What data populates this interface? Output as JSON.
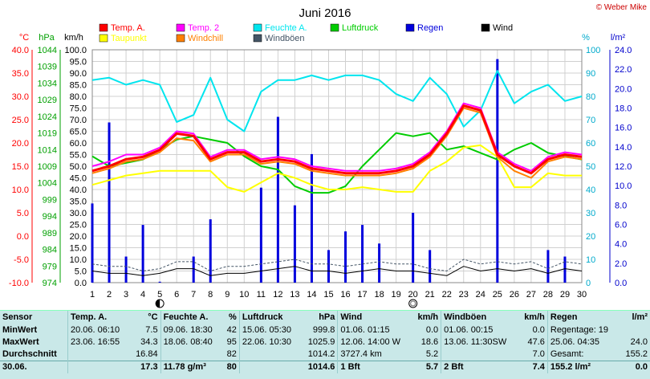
{
  "title": "Juni 2016",
  "copyright": "© Weber Mike",
  "colors": {
    "temp_a": "#ff0000",
    "temp2": "#ff00ff",
    "feuchte": "#00e5ee",
    "luftdruck": "#00cc00",
    "regen": "#0000dd",
    "wind": "#000000",
    "taupunkt": "#ffff00",
    "windchill": "#ff8000",
    "windboeen": "#445566",
    "axis_temp": "#ff0000",
    "axis_hpa": "#00a000",
    "axis_pct": "#00aacc",
    "axis_lm2": "#0000cc",
    "grid": "#d0d0d0"
  },
  "legend": [
    {
      "label": "Temp. A.",
      "color": "#ff0000"
    },
    {
      "label": "Temp. 2",
      "color": "#ff00ff"
    },
    {
      "label": "Feuchte A.",
      "color": "#00e5ee"
    },
    {
      "label": "Luftdruck",
      "color": "#00cc00"
    },
    {
      "label": "Regen",
      "color": "#0000dd"
    },
    {
      "label": "Wind",
      "color": "#000000"
    },
    {
      "label": "Taupunkt",
      "color": "#ffff00"
    },
    {
      "label": "Windchill",
      "color": "#ff8000"
    },
    {
      "label": "Windböen",
      "color": "#445566"
    }
  ],
  "axis_units": {
    "temp": "°C",
    "hpa": "hPa",
    "kmh": "km/h",
    "pct": "%",
    "lm2": "l/m²"
  },
  "chart_data": {
    "type": "line",
    "title": "Juni 2016",
    "x": [
      1,
      2,
      3,
      4,
      5,
      6,
      7,
      8,
      9,
      10,
      11,
      12,
      13,
      14,
      15,
      16,
      17,
      18,
      19,
      20,
      21,
      22,
      23,
      24,
      25,
      26,
      27,
      28,
      29,
      30
    ],
    "xlim": [
      1,
      30
    ],
    "axes": {
      "temp_c": {
        "ticks": [
          "40.0",
          "35.0",
          "30.0",
          "25.0",
          "20.0",
          "15.0",
          "10.0",
          "5.0",
          "0.0",
          "-5.0",
          "-10.0"
        ],
        "range": [
          -10,
          40
        ]
      },
      "hpa": {
        "ticks": [
          "1044",
          "1039",
          "1034",
          "1029",
          "1024",
          "1019",
          "1014",
          "1009",
          "1004",
          "999",
          "994",
          "989",
          "984",
          "979",
          "974"
        ],
        "range": [
          974,
          1044
        ]
      },
      "kmh": {
        "ticks": [
          "100.0",
          "95.0",
          "90.0",
          "85.0",
          "80.0",
          "75.0",
          "70.0",
          "65.0",
          "60.0",
          "55.0",
          "50.0",
          "45.0",
          "40.0",
          "35.0",
          "30.0",
          "25.0",
          "20.0",
          "15.0",
          "10.0",
          "5.0",
          "0.0"
        ],
        "range": [
          0,
          100
        ]
      },
      "pct": {
        "ticks": [
          "100",
          "90",
          "80",
          "70",
          "60",
          "50",
          "40",
          "30",
          "20",
          "10",
          "0"
        ],
        "range": [
          0,
          100
        ]
      },
      "lm2": {
        "ticks": [
          "24.0",
          "22.0",
          "20.0",
          "18.0",
          "16.0",
          "14.0",
          "12.0",
          "10.0",
          "8.0",
          "6.0",
          "4.0",
          "2.0",
          "0.0"
        ],
        "range": [
          0,
          25
        ]
      }
    },
    "markers": [
      {
        "x": 5,
        "symbol": "new-moon"
      },
      {
        "x": 20,
        "symbol": "full-moon"
      }
    ],
    "series": [
      {
        "name": "Temp. A.",
        "axis": "temp_c",
        "color": "#ff0000",
        "width": 3,
        "values": [
          14.0,
          15.0,
          16.5,
          17.0,
          18.5,
          22.0,
          21.5,
          16.5,
          18.0,
          18.0,
          16.0,
          16.5,
          16.0,
          14.5,
          14.0,
          13.5,
          13.5,
          13.5,
          14.0,
          15.0,
          17.5,
          22.0,
          28.0,
          27.0,
          17.5,
          15.0,
          13.5,
          16.5,
          17.5,
          17.0
        ]
      },
      {
        "name": "Temp. 2",
        "axis": "temp_c",
        "color": "#ff00ff",
        "width": 2,
        "values": [
          15.0,
          16.0,
          17.5,
          17.5,
          19.0,
          22.5,
          22.0,
          17.0,
          18.5,
          18.5,
          16.5,
          17.0,
          16.5,
          15.0,
          14.5,
          14.0,
          14.0,
          14.0,
          14.5,
          15.5,
          18.0,
          22.5,
          28.5,
          27.5,
          18.0,
          15.5,
          14.0,
          17.0,
          18.0,
          17.5
        ]
      },
      {
        "name": "Windchill",
        "axis": "temp_c",
        "color": "#ff8000",
        "width": 2,
        "values": [
          13.5,
          14.5,
          16.0,
          16.5,
          18.0,
          21.0,
          20.5,
          16.0,
          17.5,
          17.5,
          15.5,
          16.0,
          15.5,
          14.0,
          13.5,
          13.0,
          13.0,
          13.0,
          13.5,
          14.5,
          17.0,
          21.5,
          27.5,
          26.5,
          17.0,
          14.0,
          12.5,
          16.0,
          17.0,
          16.5
        ]
      },
      {
        "name": "Taupunkt",
        "axis": "temp_c",
        "color": "#ffff00",
        "width": 2,
        "values": [
          11.0,
          12.0,
          13.0,
          13.5,
          14.0,
          14.0,
          14.0,
          14.0,
          10.5,
          9.5,
          11.5,
          13.5,
          12.5,
          11.0,
          10.0,
          10.0,
          10.5,
          10.0,
          9.5,
          9.5,
          14.0,
          16.0,
          19.0,
          19.5,
          17.0,
          10.5,
          10.5,
          13.5,
          13.0,
          13.0
        ]
      },
      {
        "name": "Feuchte A.",
        "axis": "pct",
        "color": "#00e5ee",
        "width": 2,
        "values": [
          87,
          88,
          85,
          87,
          85,
          69,
          72,
          88,
          70,
          65,
          82,
          87,
          87,
          89,
          87,
          89,
          89,
          87,
          81,
          78,
          88,
          81,
          67,
          74,
          91,
          77,
          82,
          85,
          78,
          80
        ]
      },
      {
        "name": "Luftdruck",
        "axis": "hpa",
        "color": "#00cc00",
        "width": 2,
        "values": [
          1012,
          1009,
          1010,
          1011,
          1014,
          1017,
          1018,
          1017,
          1016,
          1012,
          1009,
          1008,
          1003,
          1001,
          1001,
          1003,
          1009,
          1014,
          1019,
          1018,
          1019,
          1014,
          1015,
          1013,
          1011,
          1014,
          1016,
          1013,
          1012,
          1011
        ]
      },
      {
        "name": "Wind",
        "axis": "kmh",
        "color": "#000000",
        "width": 1,
        "values": [
          5,
          4,
          4,
          3,
          4,
          6,
          6,
          3,
          4,
          4,
          5,
          6,
          7,
          5,
          5,
          4,
          5,
          6,
          5,
          5,
          4,
          3,
          7,
          5,
          6,
          5,
          6,
          4,
          6,
          5
        ]
      },
      {
        "name": "Windböen",
        "axis": "kmh",
        "color": "#445566",
        "width": 1,
        "dash": true,
        "values": [
          8,
          7,
          7,
          5,
          6,
          9,
          9,
          5,
          7,
          7,
          8,
          9,
          10,
          8,
          8,
          7,
          8,
          9,
          8,
          8,
          6,
          5,
          10,
          8,
          9,
          8,
          9,
          6,
          9,
          8
        ]
      }
    ],
    "bars": {
      "name": "Regen",
      "axis": "lm2",
      "color": "#0000dd",
      "values": [
        8.5,
        17.2,
        2.8,
        6.2,
        0.1,
        0.0,
        2.8,
        6.8,
        0.0,
        0.0,
        10.2,
        17.8,
        8.3,
        13.8,
        3.5,
        5.5,
        6.2,
        4.2,
        0.0,
        7.5,
        3.5,
        0.0,
        0.0,
        0.0,
        24.0,
        0.0,
        0.0,
        3.5,
        2.8,
        0.0
      ]
    }
  },
  "table": {
    "headers": [
      "Sensor",
      "Temp. A.",
      "°C",
      "Feuchte A.",
      "%",
      "Luftdruck",
      "hPa",
      "Wind",
      "km/h",
      "Windböen",
      "km/h",
      "Regen",
      "l/m²"
    ],
    "rows": [
      [
        "MinWert",
        "20.06.  06:10",
        "7.5",
        "09.06.  18:30",
        "42",
        "15.06.  05:30",
        "999.8",
        "01.06.  01:15",
        "0.0",
        "01.06.  00:15",
        "0.0",
        "Regentage: 19",
        ""
      ],
      [
        "MaxWert",
        "23.06.  16:55",
        "34.3",
        "18.06.  08:40",
        "95",
        "22.06.  10:30",
        "1025.9",
        "12.06.  14:00  W",
        "18.6",
        "13.06.  11:30SW",
        "47.6",
        "25.06.  04:35",
        "24.0"
      ],
      [
        "Durchschnitt",
        "",
        "16.84",
        "",
        "82",
        "",
        "1014.2",
        "3727.4 km",
        "5.2",
        "",
        "7.0",
        "Gesamt:",
        "155.2"
      ],
      [
        "30.06.",
        "",
        "17.3",
        "11.78 g/m³",
        "80",
        "",
        "1014.6",
        "1 Bft",
        "5.7",
        "2 Bft",
        "7.4",
        "155.2 l/m²",
        "0.0"
      ]
    ]
  }
}
